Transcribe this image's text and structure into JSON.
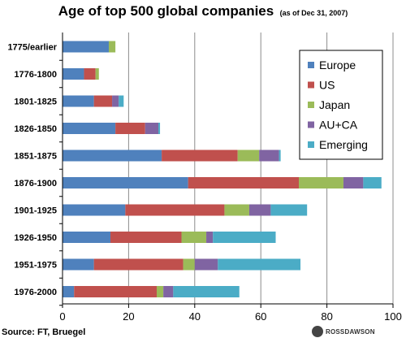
{
  "title": "Age of top 500 global companies",
  "subtitle": "(as of Dec 31, 2007)",
  "source": "Source: FT, Bruegel",
  "brand": "ROSSDAWSON",
  "chart_data": {
    "type": "bar",
    "orientation": "horizontal",
    "stacked": true,
    "categories": [
      "1775/earlier",
      "1776-1800",
      "1801-1825",
      "1826-1850",
      "1851-1875",
      "1876-1900",
      "1901-1925",
      "1926-1950",
      "1951-1975",
      "1976-2000"
    ],
    "series": [
      {
        "name": "Europe",
        "color": "#4f81bd",
        "values": [
          14,
          6.5,
          9.5,
          16,
          30,
          38,
          19,
          14.5,
          9.5,
          3.5
        ]
      },
      {
        "name": "US",
        "color": "#c0504d",
        "values": [
          0,
          3.5,
          5.5,
          9,
          23,
          33.5,
          30,
          21.5,
          27,
          25
        ]
      },
      {
        "name": "Japan",
        "color": "#9bbb59",
        "values": [
          2,
          1,
          0,
          0,
          6.5,
          13.5,
          7.5,
          7.5,
          3.5,
          2
        ]
      },
      {
        "name": "AU+CA",
        "color": "#8064a2",
        "values": [
          0,
          0,
          2,
          4,
          6,
          6,
          6.5,
          2,
          7,
          3
        ]
      },
      {
        "name": "Emerging",
        "color": "#4bacc6",
        "values": [
          0,
          0,
          1.5,
          0.5,
          0.5,
          5.5,
          11,
          19,
          25,
          20
        ]
      }
    ],
    "xlim": [
      0,
      100
    ],
    "xticks": [
      "0",
      "20",
      "40",
      "60",
      "80",
      "100"
    ],
    "grid": "vertical",
    "legend_position": "top-right"
  }
}
